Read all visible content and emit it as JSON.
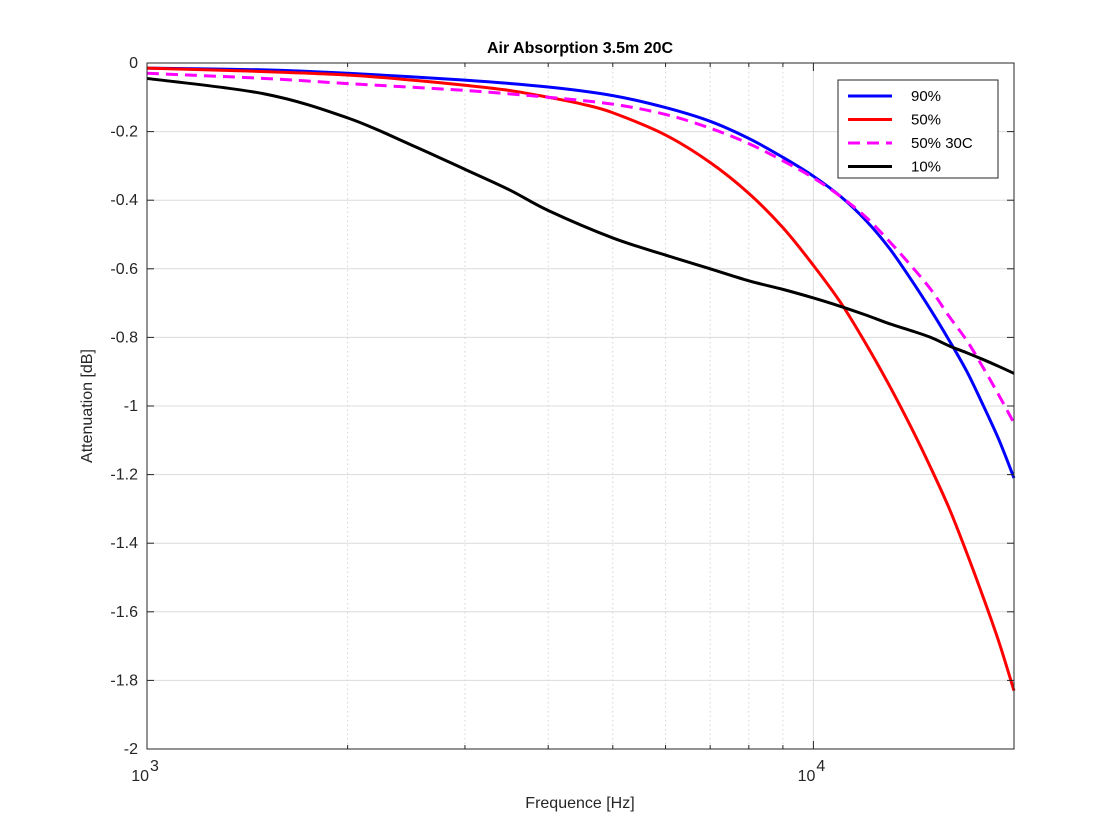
{
  "chart_data": {
    "type": "line",
    "title": "Air Absorption 3.5m 20C",
    "xlabel": "Frequence [Hz]",
    "ylabel": "Attenuation [dB]",
    "xscale": "log",
    "xlim": [
      1000,
      20000
    ],
    "ylim": [
      -2,
      0
    ],
    "grid": true,
    "legend_position": "top-right",
    "x_ticks": [
      {
        "value": 1000,
        "base": "10",
        "exp": "3"
      },
      {
        "value": 10000,
        "base": "10",
        "exp": "4"
      }
    ],
    "y_ticks": [
      {
        "value": 0,
        "label": "0"
      },
      {
        "value": -0.2,
        "label": "-0.2"
      },
      {
        "value": -0.4,
        "label": "-0.4"
      },
      {
        "value": -0.6,
        "label": "-0.6"
      },
      {
        "value": -0.8,
        "label": "-0.8"
      },
      {
        "value": -1,
        "label": "-1"
      },
      {
        "value": -1.2,
        "label": "-1.2"
      },
      {
        "value": -1.4,
        "label": "-1.4"
      },
      {
        "value": -1.6,
        "label": "-1.6"
      },
      {
        "value": -1.8,
        "label": "-1.8"
      },
      {
        "value": -2,
        "label": "-2"
      }
    ],
    "minor_x_gridlines": [
      2000,
      3000,
      4000,
      5000,
      6000,
      7000,
      8000,
      9000
    ],
    "series": [
      {
        "name": "90%",
        "color": "#0000ff",
        "dash": "solid",
        "x": [
          1000,
          1500,
          2000,
          3000,
          4000,
          5000,
          6000,
          7000,
          8000,
          9000,
          10000,
          11000,
          12000,
          13000,
          14000,
          15000,
          16000,
          17000,
          18000,
          19000,
          20000
        ],
        "y": [
          -0.015,
          -0.02,
          -0.03,
          -0.05,
          -0.07,
          -0.095,
          -0.13,
          -0.17,
          -0.22,
          -0.275,
          -0.33,
          -0.39,
          -0.46,
          -0.54,
          -0.63,
          -0.72,
          -0.81,
          -0.9,
          -1.0,
          -1.1,
          -1.21
        ]
      },
      {
        "name": "50%",
        "color": "#ff0000",
        "dash": "solid",
        "x": [
          1000,
          1500,
          2000,
          2500,
          3000,
          3500,
          4000,
          4500,
          5000,
          6000,
          7000,
          8000,
          9000,
          10000,
          11000,
          12000,
          13000,
          14000,
          15000,
          16000,
          17000,
          18000,
          19000,
          20000
        ],
        "y": [
          -0.015,
          -0.025,
          -0.035,
          -0.05,
          -0.065,
          -0.08,
          -0.1,
          -0.12,
          -0.145,
          -0.21,
          -0.29,
          -0.38,
          -0.48,
          -0.59,
          -0.7,
          -0.82,
          -0.94,
          -1.06,
          -1.18,
          -1.3,
          -1.43,
          -1.56,
          -1.69,
          -1.83
        ]
      },
      {
        "name": "50% 30C",
        "color": "#ff00ff",
        "dash": "dashed",
        "x": [
          1000,
          1500,
          2000,
          3000,
          4000,
          5000,
          6000,
          7000,
          8000,
          9000,
          10000,
          11000,
          12000,
          13000,
          14000,
          15000,
          16000,
          17000,
          18000,
          19000,
          20000
        ],
        "y": [
          -0.03,
          -0.045,
          -0.06,
          -0.08,
          -0.1,
          -0.12,
          -0.15,
          -0.19,
          -0.235,
          -0.285,
          -0.335,
          -0.39,
          -0.45,
          -0.52,
          -0.59,
          -0.66,
          -0.74,
          -0.81,
          -0.89,
          -0.97,
          -1.05
        ]
      },
      {
        "name": "10%",
        "color": "#000000",
        "dash": "solid",
        "x": [
          1000,
          1500,
          2000,
          2500,
          3000,
          3500,
          4000,
          5000,
          6000,
          7000,
          8000,
          9000,
          10000,
          11000,
          12000,
          13000,
          14000,
          15000,
          16000,
          17000,
          18000,
          19000,
          20000
        ],
        "y": [
          -0.045,
          -0.09,
          -0.16,
          -0.24,
          -0.31,
          -0.37,
          -0.43,
          -0.51,
          -0.56,
          -0.6,
          -0.635,
          -0.66,
          -0.685,
          -0.71,
          -0.735,
          -0.76,
          -0.78,
          -0.8,
          -0.825,
          -0.845,
          -0.865,
          -0.885,
          -0.905
        ]
      }
    ]
  }
}
